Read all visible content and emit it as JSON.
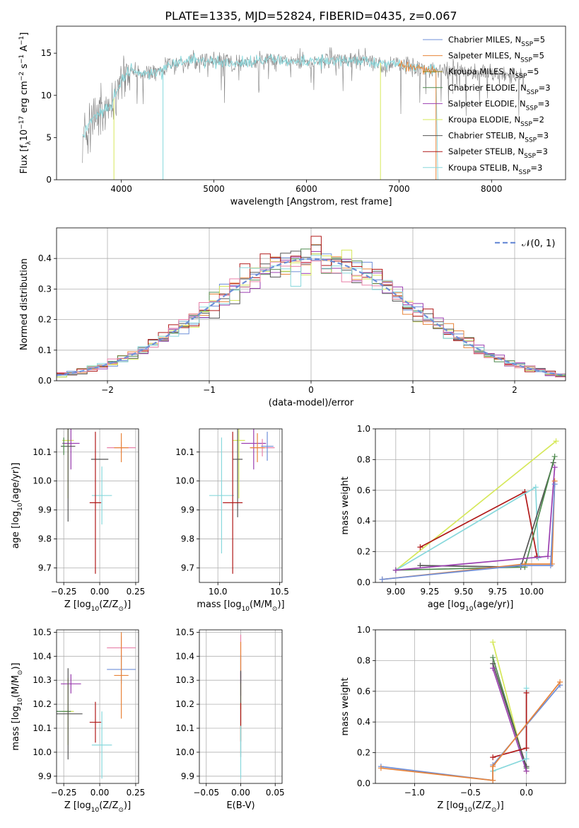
{
  "figure_title": "PLATE=1335, MJD=52824, FIBERID=0435, z=0.067",
  "colors": {
    "Chabrier MILES": "#6f8fd8",
    "Salpeter MILES": "#e8843a",
    "Kroupa MILES": "#a08a1e",
    "Chabrier ELODIE": "#4f8a4f",
    "Salpeter ELODIE": "#9b3fb0",
    "Kroupa ELODIE": "#d6e85a",
    "Chabrier STELIB": "#555555",
    "Salpeter STELIB": "#b01818",
    "Kroupa STELIB": "#88d8dc",
    "data": "#808080",
    "pink": "#e880a8"
  },
  "chart_data": [
    {
      "id": "spectrum",
      "type": "line",
      "title": "PLATE=1335, MJD=52824, FIBERID=0435, z=0.067",
      "xlabel": "wavelength [Angstrom, rest frame]",
      "ylabel_main": "Flux [f",
      "ylabel_sub": "λ",
      "ylabel_rest": "10",
      "ylabel_exp": "−17",
      "ylabel_tail": " erg cm",
      "ylabel_exp2": "−2",
      "ylabel_tail2": " s",
      "ylabel_exp3": "−1",
      "ylabel_tail3": " A",
      "ylabel_exp4": "−1",
      "ylabel_end": "]",
      "xlim": [
        3300,
        8800
      ],
      "ylim": [
        0,
        18.2
      ],
      "xticks": [
        4000,
        5000,
        6000,
        7000,
        8000
      ],
      "yticks": [
        0,
        5,
        10,
        15
      ],
      "legend_position": "top-right",
      "legend": [
        {
          "name": "Chabrier MILES, N",
          "sub": "SSP",
          "tail": "=5"
        },
        {
          "name": "Salpeter MILES, N",
          "sub": "SSP",
          "tail": "=5"
        },
        {
          "name": "Kroupa MILES, N",
          "sub": "SSP",
          "tail": "=5"
        },
        {
          "name": "Chabrier ELODIE, N",
          "sub": "SSP",
          "tail": "=3"
        },
        {
          "name": "Salpeter ELODIE, N",
          "sub": "SSP",
          "tail": "=3"
        },
        {
          "name": "Kroupa ELODIE, N",
          "sub": "SSP",
          "tail": "=2"
        },
        {
          "name": "Chabrier STELIB, N",
          "sub": "SSP",
          "tail": "=3"
        },
        {
          "name": "Salpeter STELIB, N",
          "sub": "SSP",
          "tail": "=3"
        },
        {
          "name": "Kroupa STELIB, N",
          "sub": "SSP",
          "tail": "=3"
        }
      ],
      "legend_colors": [
        "Chabrier MILES",
        "Salpeter MILES",
        "Kroupa MILES",
        "Chabrier ELODIE",
        "Salpeter ELODIE",
        "Kroupa ELODIE",
        "Chabrier STELIB",
        "Salpeter STELIB",
        "Kroupa STELIB"
      ],
      "continuum_anchors": [
        [
          3580,
          5.0
        ],
        [
          3700,
          7.5
        ],
        [
          3800,
          8.0
        ],
        [
          3900,
          9.0
        ],
        [
          4000,
          12.0
        ],
        [
          4100,
          13.0
        ],
        [
          4300,
          12.5
        ],
        [
          4500,
          13.5
        ],
        [
          4800,
          14.2
        ],
        [
          5000,
          14.0
        ],
        [
          5200,
          13.8
        ],
        [
          5500,
          14.2
        ],
        [
          6000,
          14.0
        ],
        [
          6500,
          14.2
        ],
        [
          7000,
          13.6
        ],
        [
          7400,
          13.0
        ],
        [
          7420,
          0.0
        ]
      ],
      "model_gaps": [
        {
          "series": "Kroupa STELIB",
          "x": 4450
        },
        {
          "series": "Kroupa ELODIE",
          "x": 3920
        },
        {
          "series": "Kroupa ELODIE",
          "x": 6800
        },
        {
          "series": "Salpeter MILES",
          "x": 7400
        }
      ],
      "data_extent": [
        3580,
        8350
      ]
    },
    {
      "id": "residuals",
      "type": "bar",
      "xlabel": "(data-model)/error",
      "ylabel": "Normed distribution",
      "xlim": [
        -2.5,
        2.5
      ],
      "ylim": [
        0,
        0.5
      ],
      "xticks": [
        -2,
        -1,
        0,
        1,
        2
      ],
      "xtick_labels": [
        "−2",
        "−1",
        "0",
        "1",
        "2"
      ],
      "yticks": [
        0.0,
        0.1,
        0.2,
        0.3,
        0.4
      ],
      "ytick_labels": [
        "0.0",
        "0.1",
        "0.2",
        "0.3",
        "0.4"
      ],
      "bin_width": 0.1,
      "legend_label": "𝒩(0, 1)",
      "legend_position": "top-right",
      "gaussian": {
        "mu": 0,
        "sigma": 1
      }
    },
    {
      "id": "age_vs_Z",
      "type": "scatter",
      "xlabel": "Z [log",
      "xlabel_sub": "10",
      "xlabel_tail": "(Z/Z",
      "xlabel_sub2": "⊙",
      "xlabel_end": ")]",
      "ylabel": "age  [log",
      "ylabel_sub": "10",
      "ylabel_tail": "(age/yr)]",
      "xlim": [
        -0.3,
        0.27
      ],
      "ylim": [
        9.65,
        10.18
      ],
      "xticks": [
        -0.25,
        0.0,
        0.25
      ],
      "xtick_labels": [
        "−0.25",
        "0.00",
        "0.25"
      ],
      "yticks": [
        9.7,
        9.8,
        9.9,
        10.0,
        10.1
      ],
      "ytick_labels": [
        "9.7",
        "9.8",
        "9.9",
        "10.0",
        "10.1"
      ],
      "points": [
        {
          "series": "Kroupa ELODIE",
          "x": -0.22,
          "xerr": 0.04,
          "y": 10.14,
          "yerr": 0.2
        },
        {
          "series": "Kroupa ELODIE",
          "x": 0.0,
          "xerr": 0.0,
          "y": 10.14,
          "yerr": 0.0
        },
        {
          "series": "Salpeter ELODIE",
          "x": -0.2,
          "xerr": 0.06,
          "y": 10.13,
          "yerr": 0.09
        },
        {
          "series": "Chabrier STELIB",
          "x": -0.22,
          "xerr": 0.05,
          "y": 10.12,
          "yerr": 0.26
        },
        {
          "series": "Chabrier STELIB",
          "x": 0.0,
          "xerr": 0.06,
          "y": 10.075,
          "yerr": 0.0
        },
        {
          "series": "Pink",
          "x": 0.15,
          "xerr": 0.1,
          "y": 10.115,
          "yerr": 0.02
        },
        {
          "series": "Salpeter MILES",
          "x": 0.15,
          "xerr": 0.05,
          "y": 10.115,
          "yerr": 0.05
        },
        {
          "series": "Kroupa STELIB",
          "x": 0.015,
          "xerr": 0.07,
          "y": 9.95,
          "yerr": 0.1
        },
        {
          "series": "Salpeter STELIB",
          "x": -0.03,
          "xerr": 0.04,
          "y": 9.925,
          "yerr": 0.245
        },
        {
          "series": "Chabrier ELODIE",
          "x": -0.25,
          "xerr": 0.01,
          "y": 10.12,
          "yerr": 0.03
        }
      ]
    },
    {
      "id": "age_vs_mass",
      "type": "scatter",
      "xlabel": "mass [log",
      "xlabel_sub": "10",
      "xlabel_tail": "(M/M",
      "xlabel_sub2": "⊙",
      "xlabel_end": ")]",
      "xlim": [
        9.85,
        10.52
      ],
      "ylim": [
        9.65,
        10.18
      ],
      "xticks": [
        10.0,
        10.5
      ],
      "xtick_labels": [
        "10.0",
        "10.5"
      ],
      "yticks": [
        9.7,
        9.8,
        9.9,
        10.0,
        10.1
      ],
      "ytick_labels": [
        "9.7",
        "9.8",
        "9.9",
        "10.0",
        "10.1"
      ],
      "points": [
        {
          "series": "Kroupa ELODIE",
          "x": 10.17,
          "xerr": 0.05,
          "y": 10.14,
          "yerr": 0.2
        },
        {
          "series": "Salpeter ELODIE",
          "x": 10.29,
          "xerr": 0.1,
          "y": 10.13,
          "yerr": 0.09
        },
        {
          "series": "Chabrier STELIB",
          "x": 10.16,
          "xerr": 0.04,
          "y": 10.075,
          "yerr": 0.2
        },
        {
          "series": "Pink",
          "x": 10.36,
          "xerr": 0.1,
          "y": 10.115,
          "yerr": 0.03
        },
        {
          "series": "Salpeter MILES",
          "x": 10.32,
          "xerr": 0.06,
          "y": 10.115,
          "yerr": 0.05
        },
        {
          "series": "Chabrier MILES",
          "x": 10.4,
          "xerr": 0.05,
          "y": 10.12,
          "yerr": 0.05
        },
        {
          "series": "Kroupa STELIB",
          "x": 10.03,
          "xerr": 0.1,
          "y": 9.95,
          "yerr": 0.2
        },
        {
          "series": "Salpeter STELIB",
          "x": 10.12,
          "xerr": 0.08,
          "y": 9.925,
          "yerr": 0.245
        }
      ]
    },
    {
      "id": "weight_vs_age",
      "type": "line",
      "xlabel": "age  [log",
      "xlabel_sub": "10",
      "xlabel_tail": "(age/yr)]",
      "ylabel": "mass weight",
      "xlim": [
        8.85,
        10.25
      ],
      "ylim": [
        0,
        1.0
      ],
      "xticks": [
        9.0,
        9.25,
        9.5,
        9.75,
        10.0
      ],
      "xtick_labels": [
        "9.00",
        "9.25",
        "9.50",
        "9.75",
        "10.00"
      ],
      "yticks": [
        0.0,
        0.2,
        0.4,
        0.6,
        0.8,
        1.0
      ],
      "ytick_labels": [
        "0.0",
        "0.2",
        "0.4",
        "0.6",
        "0.8",
        "1.0"
      ],
      "series": [
        {
          "name": "Kroupa ELODIE",
          "x": [
            9.0,
            10.18
          ],
          "y": [
            0.08,
            0.92
          ]
        },
        {
          "name": "Salpeter STELIB",
          "x": [
            9.18,
            9.95,
            10.04
          ],
          "y": [
            0.23,
            0.59,
            0.17
          ]
        },
        {
          "name": "Kroupa STELIB",
          "x": [
            9.0,
            10.03,
            10.05
          ],
          "y": [
            0.08,
            0.62,
            0.16
          ]
        },
        {
          "name": "Chabrier STELIB",
          "x": [
            9.18,
            9.92,
            10.16
          ],
          "y": [
            0.11,
            0.1,
            0.78
          ]
        },
        {
          "name": "Chabrier ELODIE",
          "x": [
            9.0,
            9.95,
            10.17
          ],
          "y": [
            0.08,
            0.1,
            0.82
          ]
        },
        {
          "name": "Salpeter ELODIE",
          "x": [
            9.0,
            10.12,
            10.17
          ],
          "y": [
            0.08,
            0.17,
            0.75
          ]
        },
        {
          "name": "Salpeter MILES",
          "x": [
            8.9,
            9.95,
            10.15,
            10.17
          ],
          "y": [
            0.02,
            0.12,
            0.12,
            0.66
          ]
        },
        {
          "name": "Chabrier MILES",
          "x": [
            8.9,
            9.92,
            10.14,
            10.17
          ],
          "y": [
            0.02,
            0.11,
            0.11,
            0.64
          ]
        }
      ]
    },
    {
      "id": "mass_vs_Z",
      "type": "scatter",
      "xlabel": "Z [log",
      "xlabel_sub": "10",
      "xlabel_tail": "(Z/Z",
      "xlabel_sub2": "⊙",
      "xlabel_end": ")]",
      "ylabel": "mass [log",
      "ylabel_sub": "10",
      "ylabel_tail": "(M/M",
      "ylabel_sub2": "⊙",
      "ylabel_end": ")]",
      "xlim": [
        -0.3,
        0.27
      ],
      "ylim": [
        9.87,
        10.51
      ],
      "xticks": [
        -0.25,
        0.0,
        0.25
      ],
      "xtick_labels": [
        "−0.25",
        "0.00",
        "0.25"
      ],
      "yticks": [
        9.9,
        10.0,
        10.1,
        10.2,
        10.3,
        10.4,
        10.5
      ],
      "ytick_labels": [
        "9.9",
        "10.0",
        "10.1",
        "10.2",
        "10.3",
        "10.4",
        "10.5"
      ],
      "points": [
        {
          "series": "Pink",
          "x": 0.15,
          "xerr": 0.1,
          "y": 10.435,
          "yerr": 0.05
        },
        {
          "series": "Chabrier MILES",
          "x": 0.15,
          "xerr": 0.1,
          "y": 10.345,
          "yerr": 0.06
        },
        {
          "series": "Salpeter MILES",
          "x": 0.15,
          "xerr": 0.05,
          "y": 10.32,
          "yerr": 0.18
        },
        {
          "series": "Salpeter ELODIE",
          "x": -0.2,
          "xerr": 0.07,
          "y": 10.285,
          "yerr": 0.04
        },
        {
          "series": "Kroupa ELODIE",
          "x": -0.22,
          "xerr": 0.04,
          "y": 10.17,
          "yerr": 0.14
        },
        {
          "series": "Chabrier ELODIE",
          "x": -0.25,
          "xerr": 0.05,
          "y": 10.17,
          "yerr": 0.0
        },
        {
          "series": "Chabrier STELIB",
          "x": -0.22,
          "xerr": 0.1,
          "y": 10.16,
          "yerr": 0.19
        },
        {
          "series": "Salpeter STELIB",
          "x": -0.03,
          "xerr": 0.04,
          "y": 10.125,
          "yerr": 0.085
        },
        {
          "series": "Kroupa STELIB",
          "x": 0.015,
          "xerr": 0.07,
          "y": 10.03,
          "yerr": 0.14
        }
      ]
    },
    {
      "id": "mass_vs_ebv",
      "type": "scatter",
      "xlabel": "E(B-V)",
      "xlim": [
        -0.06,
        0.06
      ],
      "ylim": [
        9.87,
        10.51
      ],
      "xticks": [
        -0.05,
        0.0,
        0.05
      ],
      "xtick_labels": [
        "−0.05",
        "0.00",
        "0.05"
      ],
      "yticks": [
        9.9,
        10.0,
        10.1,
        10.2,
        10.3,
        10.4,
        10.5
      ],
      "ytick_labels": [
        "9.9",
        "10.0",
        "10.1",
        "10.2",
        "10.3",
        "10.4",
        "10.5"
      ],
      "points": [
        {
          "series": "Pink",
          "x": 0.0,
          "xerr": 0.0,
          "y": 10.4,
          "yerr": 0.09
        },
        {
          "series": "Chabrier MILES",
          "x": 0.0,
          "xerr": 0.0,
          "y": 10.345,
          "yerr": 0.06
        },
        {
          "series": "Salpeter MILES",
          "x": 0.0,
          "xerr": 0.0,
          "y": 10.32,
          "yerr": 0.14
        },
        {
          "series": "Salpeter ELODIE",
          "x": 0.0,
          "xerr": 0.0,
          "y": 10.285,
          "yerr": 0.05
        },
        {
          "series": "Kroupa ELODIE",
          "x": 0.0,
          "xerr": 0.0,
          "y": 10.17,
          "yerr": 0.12
        },
        {
          "series": "Chabrier STELIB",
          "x": 0.0,
          "xerr": 0.0,
          "y": 10.16,
          "yerr": 0.18
        },
        {
          "series": "Salpeter STELIB",
          "x": 0.0,
          "xerr": 0.0,
          "y": 10.125,
          "yerr": 0.08
        },
        {
          "series": "Kroupa STELIB",
          "x": 0.0,
          "xerr": 0.0,
          "y": 10.0,
          "yerr": 0.11
        }
      ]
    },
    {
      "id": "weight_vs_Z",
      "type": "line",
      "xlabel": "Z [log",
      "xlabel_sub": "10",
      "xlabel_tail": "(Z/Z",
      "xlabel_sub2": "⊙",
      "xlabel_end": ")]",
      "ylabel": "mass weight",
      "xlim": [
        -1.35,
        0.35
      ],
      "ylim": [
        0,
        1.0
      ],
      "xticks": [
        -1.0,
        -0.5,
        0.0
      ],
      "xtick_labels": [
        "−1.0",
        "−0.5",
        "0.0"
      ],
      "yticks": [
        0.0,
        0.2,
        0.4,
        0.6,
        0.8,
        1.0
      ],
      "ytick_labels": [
        "0.0",
        "0.2",
        "0.4",
        "0.6",
        "0.8",
        "1.0"
      ],
      "series": [
        {
          "name": "Kroupa ELODIE",
          "x": [
            -0.3,
            0.0
          ],
          "y": [
            0.92,
            0.08
          ]
        },
        {
          "name": "Chabrier ELODIE",
          "x": [
            -0.3,
            0.0
          ],
          "y": [
            0.82,
            0.1
          ]
        },
        {
          "name": "Chabrier STELIB",
          "x": [
            -0.3,
            0.0
          ],
          "y": [
            0.78,
            0.11
          ]
        },
        {
          "name": "Salpeter ELODIE",
          "x": [
            -0.3,
            0.0
          ],
          "y": [
            0.75,
            0.08
          ]
        },
        {
          "name": "Kroupa STELIB",
          "x": [
            0.0,
            0.0,
            -0.3
          ],
          "y": [
            0.62,
            0.16,
            0.08
          ]
        },
        {
          "name": "Salpeter STELIB",
          "x": [
            0.0,
            0.0,
            -0.3
          ],
          "y": [
            0.59,
            0.23,
            0.17
          ]
        },
        {
          "name": "Chabrier MILES",
          "x": [
            -1.3,
            -0.3,
            -0.3,
            0.3
          ],
          "y": [
            0.11,
            0.02,
            0.12,
            0.64
          ]
        },
        {
          "name": "Salpeter MILES",
          "x": [
            -1.3,
            -0.3,
            -0.3,
            0.3
          ],
          "y": [
            0.1,
            0.02,
            0.11,
            0.66
          ]
        }
      ]
    }
  ]
}
